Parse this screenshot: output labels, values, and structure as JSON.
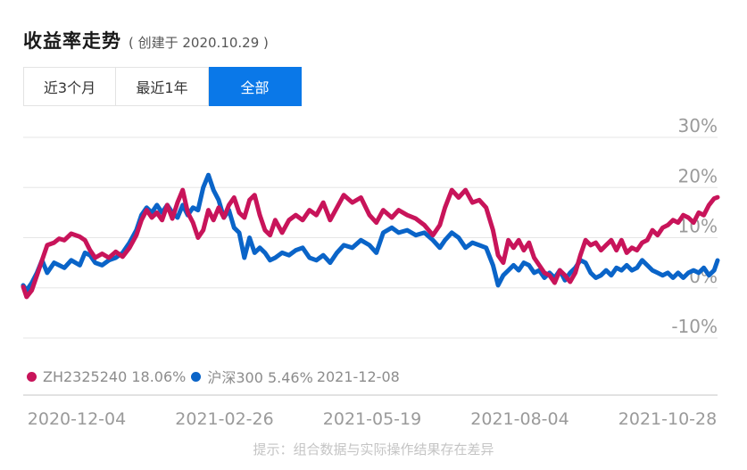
{
  "header": {
    "title": "收益率走势",
    "subtitle": "( 创建于 2020.10.29 )"
  },
  "tabs": [
    {
      "label": "近3个月",
      "active": false
    },
    {
      "label": "最近1年",
      "active": false
    },
    {
      "label": "全部",
      "active": true
    }
  ],
  "legend": {
    "series1": "ZH2325240 18.06%",
    "series2": "沪深300 5.46%",
    "date": "2021-12-08"
  },
  "footer": {
    "note": "提示：组合数据与实际操作结果存在差异"
  },
  "colors": {
    "series1": "#c8145a",
    "series2": "#0a64c8",
    "accent": "#0a78e8",
    "grid": "#e6e6e6",
    "axis_text": "#9a9a9a"
  },
  "chart_data": {
    "type": "line",
    "y_ticks": [
      "30%",
      "20%",
      "10%",
      "0%",
      "-10%"
    ],
    "ylim": [
      -10,
      30
    ],
    "x_ticks": [
      "2020-12-04",
      "2021-02-26",
      "2021-05-19",
      "2021-08-04",
      "2021-10-28"
    ],
    "xlim": [
      "2020-10-29",
      "2021-12-08"
    ],
    "series": [
      {
        "name": "ZH2325240",
        "points": [
          [
            "2020-10-29",
            0.2
          ],
          [
            "2020-10-31",
            -1.8
          ],
          [
            "2020-11-03",
            -0.5
          ],
          [
            "2020-11-06",
            2.5
          ],
          [
            "2020-11-09",
            5.5
          ],
          [
            "2020-11-12",
            8.5
          ],
          [
            "2020-11-16",
            9.0
          ],
          [
            "2020-11-19",
            9.8
          ],
          [
            "2020-11-22",
            9.5
          ],
          [
            "2020-11-26",
            10.8
          ],
          [
            "2020-12-01",
            10.2
          ],
          [
            "2020-12-04",
            9.5
          ],
          [
            "2020-12-07",
            7.5
          ],
          [
            "2020-12-10",
            6.0
          ],
          [
            "2020-12-14",
            6.8
          ],
          [
            "2020-12-18",
            6.0
          ],
          [
            "2020-12-22",
            7.2
          ],
          [
            "2020-12-26",
            6.2
          ],
          [
            "2020-12-30",
            8.0
          ],
          [
            "2021-01-03",
            10.5
          ],
          [
            "2021-01-06",
            13.5
          ],
          [
            "2021-01-09",
            15.5
          ],
          [
            "2021-01-12",
            14.0
          ],
          [
            "2021-01-15",
            15.0
          ],
          [
            "2021-01-18",
            13.5
          ],
          [
            "2021-01-21",
            16.5
          ],
          [
            "2021-01-24",
            13.8
          ],
          [
            "2021-01-27",
            17.0
          ],
          [
            "2021-01-30",
            19.5
          ],
          [
            "2021-02-02",
            15.0
          ],
          [
            "2021-02-05",
            13.0
          ],
          [
            "2021-02-08",
            10.0
          ],
          [
            "2021-02-11",
            11.5
          ],
          [
            "2021-02-14",
            15.5
          ],
          [
            "2021-02-17",
            13.5
          ],
          [
            "2021-02-20",
            16.0
          ],
          [
            "2021-02-23",
            14.0
          ],
          [
            "2021-02-26",
            16.5
          ],
          [
            "2021-03-01",
            18.0
          ],
          [
            "2021-03-04",
            15.0
          ],
          [
            "2021-03-07",
            14.0
          ],
          [
            "2021-03-10",
            17.5
          ],
          [
            "2021-03-13",
            18.5
          ],
          [
            "2021-03-16",
            14.5
          ],
          [
            "2021-03-19",
            11.5
          ],
          [
            "2021-03-22",
            10.5
          ],
          [
            "2021-03-25",
            13.5
          ],
          [
            "2021-03-29",
            11.0
          ],
          [
            "2021-04-02",
            13.5
          ],
          [
            "2021-04-06",
            14.5
          ],
          [
            "2021-04-10",
            13.5
          ],
          [
            "2021-04-14",
            15.5
          ],
          [
            "2021-04-18",
            14.5
          ],
          [
            "2021-04-22",
            17.0
          ],
          [
            "2021-04-26",
            13.5
          ],
          [
            "2021-04-30",
            16.0
          ],
          [
            "2021-05-04",
            18.5
          ],
          [
            "2021-05-09",
            17.0
          ],
          [
            "2021-05-14",
            18.0
          ],
          [
            "2021-05-19",
            14.5
          ],
          [
            "2021-05-23",
            13.0
          ],
          [
            "2021-05-27",
            15.5
          ],
          [
            "2021-06-01",
            14.0
          ],
          [
            "2021-06-05",
            15.5
          ],
          [
            "2021-06-10",
            14.5
          ],
          [
            "2021-06-15",
            13.8
          ],
          [
            "2021-06-20",
            12.5
          ],
          [
            "2021-06-25",
            10.5
          ],
          [
            "2021-06-29",
            12.5
          ],
          [
            "2021-07-02",
            16.0
          ],
          [
            "2021-07-06",
            19.5
          ],
          [
            "2021-07-10",
            18.0
          ],
          [
            "2021-07-14",
            19.5
          ],
          [
            "2021-07-18",
            17.0
          ],
          [
            "2021-07-22",
            17.5
          ],
          [
            "2021-07-26",
            16.0
          ],
          [
            "2021-07-30",
            11.5
          ],
          [
            "2021-08-02",
            6.5
          ],
          [
            "2021-08-05",
            5.0
          ],
          [
            "2021-08-08",
            9.5
          ],
          [
            "2021-08-11",
            8.0
          ],
          [
            "2021-08-14",
            9.5
          ],
          [
            "2021-08-17",
            7.5
          ],
          [
            "2021-08-20",
            9.0
          ],
          [
            "2021-08-23",
            6.0
          ],
          [
            "2021-08-26",
            4.5
          ],
          [
            "2021-08-29",
            3.0
          ],
          [
            "2021-09-01",
            2.5
          ],
          [
            "2021-09-04",
            1.0
          ],
          [
            "2021-09-07",
            3.5
          ],
          [
            "2021-09-10",
            2.5
          ],
          [
            "2021-09-13",
            1.2
          ],
          [
            "2021-09-16",
            3.0
          ],
          [
            "2021-09-19",
            6.5
          ],
          [
            "2021-09-22",
            9.5
          ],
          [
            "2021-09-25",
            8.5
          ],
          [
            "2021-09-28",
            9.0
          ],
          [
            "2021-10-01",
            7.5
          ],
          [
            "2021-10-04",
            8.5
          ],
          [
            "2021-10-07",
            9.5
          ],
          [
            "2021-10-10",
            7.5
          ],
          [
            "2021-10-13",
            9.5
          ],
          [
            "2021-10-16",
            7.0
          ],
          [
            "2021-10-19",
            8.0
          ],
          [
            "2021-10-22",
            7.5
          ],
          [
            "2021-10-25",
            9.0
          ],
          [
            "2021-10-28",
            9.5
          ],
          [
            "2021-10-31",
            11.5
          ],
          [
            "2021-11-03",
            10.5
          ],
          [
            "2021-11-06",
            12.0
          ],
          [
            "2021-11-09",
            12.5
          ],
          [
            "2021-11-12",
            13.5
          ],
          [
            "2021-11-15",
            13.0
          ],
          [
            "2021-11-18",
            14.5
          ],
          [
            "2021-11-21",
            14.0
          ],
          [
            "2021-11-24",
            13.0
          ],
          [
            "2021-11-27",
            15.0
          ],
          [
            "2021-11-30",
            14.5
          ],
          [
            "2021-12-03",
            16.5
          ],
          [
            "2021-12-06",
            17.8
          ],
          [
            "2021-12-08",
            18.06
          ]
        ]
      },
      {
        "name": "沪深300",
        "points": [
          [
            "2020-10-29",
            0.5
          ],
          [
            "2020-10-31",
            -0.5
          ],
          [
            "2020-11-03",
            1.0
          ],
          [
            "2020-11-06",
            3.0
          ],
          [
            "2020-11-09",
            5.5
          ],
          [
            "2020-11-12",
            3.0
          ],
          [
            "2020-11-16",
            5.0
          ],
          [
            "2020-11-19",
            4.5
          ],
          [
            "2020-11-22",
            4.0
          ],
          [
            "2020-11-26",
            5.5
          ],
          [
            "2020-12-01",
            4.5
          ],
          [
            "2020-12-04",
            7.0
          ],
          [
            "2020-12-07",
            6.5
          ],
          [
            "2020-12-10",
            5.0
          ],
          [
            "2020-12-14",
            4.5
          ],
          [
            "2020-12-18",
            5.5
          ],
          [
            "2020-12-22",
            6.0
          ],
          [
            "2020-12-26",
            7.0
          ],
          [
            "2020-12-30",
            9.0
          ],
          [
            "2021-01-03",
            11.5
          ],
          [
            "2021-01-06",
            14.5
          ],
          [
            "2021-01-09",
            16.0
          ],
          [
            "2021-01-12",
            15.0
          ],
          [
            "2021-01-15",
            16.5
          ],
          [
            "2021-01-18",
            15.0
          ],
          [
            "2021-01-21",
            16.5
          ],
          [
            "2021-01-24",
            15.0
          ],
          [
            "2021-01-27",
            14.0
          ],
          [
            "2021-01-30",
            16.5
          ],
          [
            "2021-02-02",
            14.5
          ],
          [
            "2021-02-05",
            16.0
          ],
          [
            "2021-02-08",
            15.5
          ],
          [
            "2021-02-11",
            20.0
          ],
          [
            "2021-02-14",
            22.5
          ],
          [
            "2021-02-17",
            19.5
          ],
          [
            "2021-02-20",
            17.5
          ],
          [
            "2021-02-23",
            14.0
          ],
          [
            "2021-02-26",
            15.5
          ],
          [
            "2021-03-01",
            12.0
          ],
          [
            "2021-03-04",
            11.0
          ],
          [
            "2021-03-07",
            6.0
          ],
          [
            "2021-03-10",
            10.0
          ],
          [
            "2021-03-13",
            7.0
          ],
          [
            "2021-03-16",
            8.0
          ],
          [
            "2021-03-19",
            7.0
          ],
          [
            "2021-03-22",
            5.5
          ],
          [
            "2021-03-25",
            6.0
          ],
          [
            "2021-03-29",
            7.0
          ],
          [
            "2021-04-02",
            6.5
          ],
          [
            "2021-04-06",
            7.5
          ],
          [
            "2021-04-10",
            8.0
          ],
          [
            "2021-04-14",
            6.0
          ],
          [
            "2021-04-18",
            5.5
          ],
          [
            "2021-04-22",
            6.5
          ],
          [
            "2021-04-26",
            5.0
          ],
          [
            "2021-04-30",
            7.0
          ],
          [
            "2021-05-04",
            8.5
          ],
          [
            "2021-05-09",
            8.0
          ],
          [
            "2021-05-14",
            9.5
          ],
          [
            "2021-05-19",
            8.5
          ],
          [
            "2021-05-23",
            7.0
          ],
          [
            "2021-05-27",
            11.0
          ],
          [
            "2021-06-01",
            12.0
          ],
          [
            "2021-06-05",
            11.0
          ],
          [
            "2021-06-10",
            11.5
          ],
          [
            "2021-06-15",
            10.5
          ],
          [
            "2021-06-20",
            11.0
          ],
          [
            "2021-06-25",
            9.5
          ],
          [
            "2021-06-29",
            8.0
          ],
          [
            "2021-07-02",
            9.5
          ],
          [
            "2021-07-06",
            11.0
          ],
          [
            "2021-07-10",
            10.0
          ],
          [
            "2021-07-14",
            8.0
          ],
          [
            "2021-07-18",
            9.0
          ],
          [
            "2021-07-22",
            8.5
          ],
          [
            "2021-07-26",
            8.0
          ],
          [
            "2021-07-30",
            4.5
          ],
          [
            "2021-08-02",
            0.5
          ],
          [
            "2021-08-05",
            2.5
          ],
          [
            "2021-08-08",
            3.5
          ],
          [
            "2021-08-11",
            4.5
          ],
          [
            "2021-08-14",
            3.5
          ],
          [
            "2021-08-17",
            5.0
          ],
          [
            "2021-08-20",
            4.5
          ],
          [
            "2021-08-23",
            3.0
          ],
          [
            "2021-08-26",
            3.5
          ],
          [
            "2021-08-29",
            2.0
          ],
          [
            "2021-09-01",
            3.0
          ],
          [
            "2021-09-04",
            2.0
          ],
          [
            "2021-09-07",
            3.5
          ],
          [
            "2021-09-10",
            1.5
          ],
          [
            "2021-09-13",
            3.0
          ],
          [
            "2021-09-16",
            4.0
          ],
          [
            "2021-09-19",
            5.5
          ],
          [
            "2021-09-22",
            5.0
          ],
          [
            "2021-09-25",
            3.0
          ],
          [
            "2021-09-28",
            2.0
          ],
          [
            "2021-10-01",
            2.5
          ],
          [
            "2021-10-04",
            3.5
          ],
          [
            "2021-10-07",
            2.5
          ],
          [
            "2021-10-10",
            4.0
          ],
          [
            "2021-10-13",
            3.5
          ],
          [
            "2021-10-16",
            4.5
          ],
          [
            "2021-10-19",
            3.5
          ],
          [
            "2021-10-22",
            4.0
          ],
          [
            "2021-10-25",
            5.5
          ],
          [
            "2021-10-28",
            4.5
          ],
          [
            "2021-10-31",
            3.5
          ],
          [
            "2021-11-03",
            3.0
          ],
          [
            "2021-11-06",
            2.5
          ],
          [
            "2021-11-09",
            3.0
          ],
          [
            "2021-11-12",
            2.0
          ],
          [
            "2021-11-15",
            3.0
          ],
          [
            "2021-11-18",
            2.0
          ],
          [
            "2021-11-21",
            3.0
          ],
          [
            "2021-11-24",
            3.5
          ],
          [
            "2021-11-27",
            3.0
          ],
          [
            "2021-11-30",
            4.0
          ],
          [
            "2021-12-03",
            2.5
          ],
          [
            "2021-12-06",
            3.5
          ],
          [
            "2021-12-08",
            5.46
          ]
        ]
      }
    ]
  }
}
